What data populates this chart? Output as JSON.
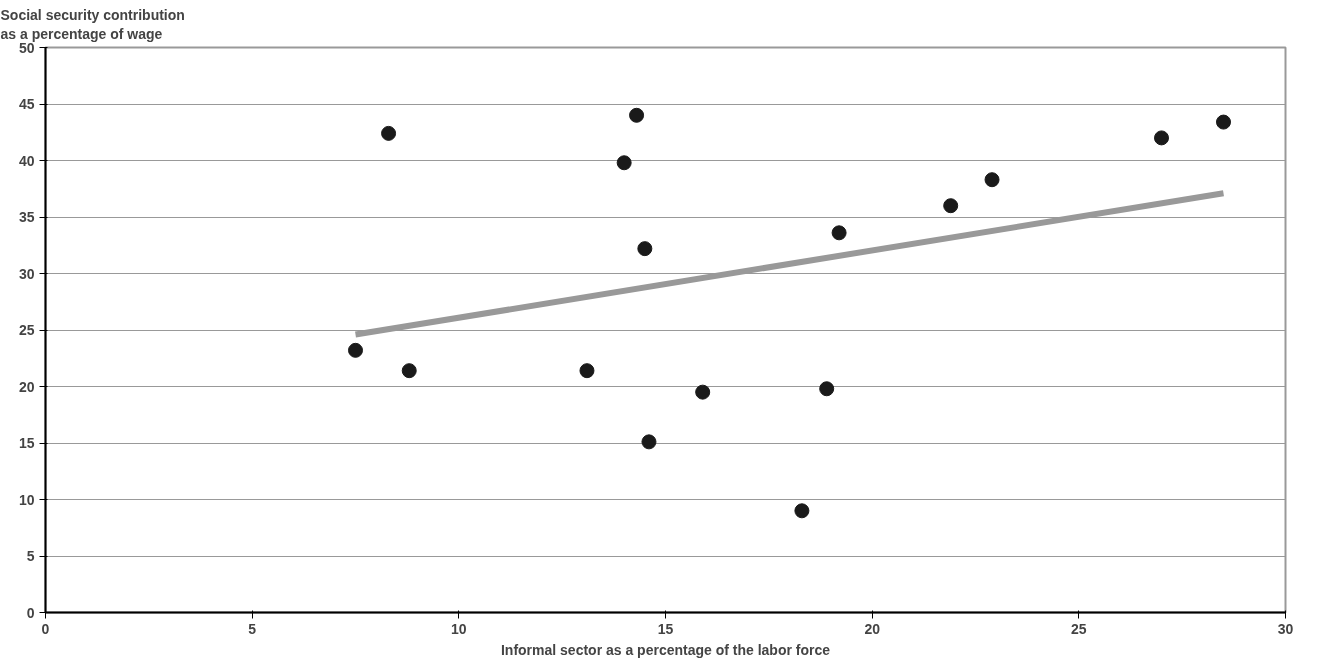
{
  "chart_data": {
    "type": "scatter",
    "xlabel": "Informal sector as a percentage of the labor force",
    "ylabel": "Social security contribution\nas a percentage of wage",
    "xlim": [
      0,
      30
    ],
    "xticks": [
      0,
      5,
      10,
      15,
      20,
      25,
      30
    ],
    "ylim": [
      0,
      50
    ],
    "yticks": [
      0,
      5,
      10,
      15,
      20,
      25,
      30,
      35,
      40,
      45,
      50
    ],
    "grid": "y",
    "marker": "circle",
    "series": [
      {
        "color": "#1a1a1a",
        "x": [
          7.5,
          8.3,
          8.8,
          13.1,
          14.0,
          14.3,
          14.5,
          14.6,
          15.9,
          18.3,
          18.9,
          19.2,
          21.9,
          22.9,
          27.0,
          28.5
        ],
        "values": [
          23.2,
          42.4,
          21.4,
          21.4,
          39.8,
          44.0,
          32.2,
          15.1,
          19.5,
          9.0,
          19.8,
          33.6,
          36.0,
          38.3,
          42.0,
          43.4
        ]
      },
      {
        "type": "line",
        "color": "#999999",
        "marker": "none",
        "x": [
          7.5,
          28.5
        ],
        "values": [
          24.6,
          37.1
        ]
      }
    ]
  }
}
